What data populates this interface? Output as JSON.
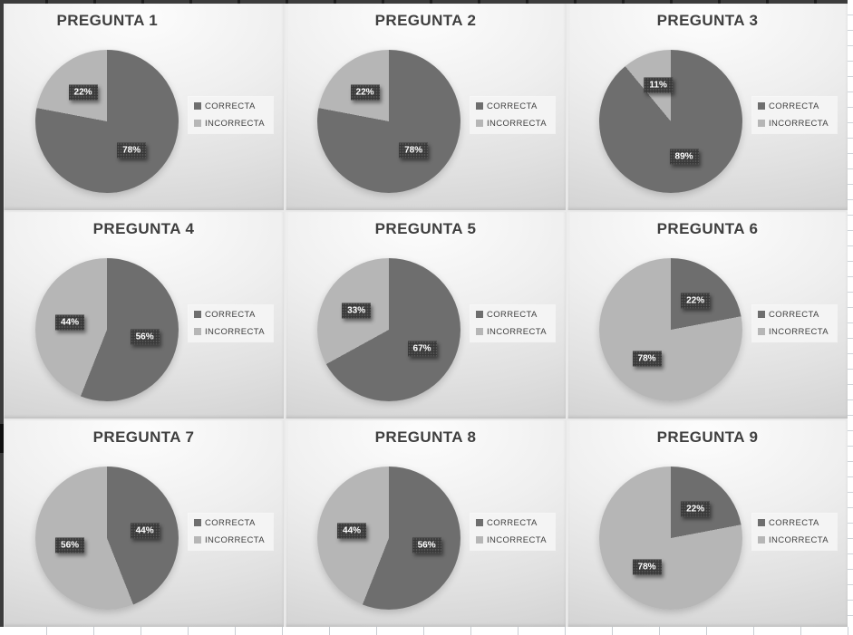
{
  "colors": {
    "correcta_slice": "#6e6e6e",
    "incorrecta_slice": "#b6b6b6",
    "label_badge": "#383838",
    "label_text": "#ffffff",
    "title_text": "#3f3f3f",
    "legend_text": "#404040"
  },
  "chart_data": [
    {
      "type": "pie",
      "title": "PREGUNTA 1",
      "labels": [
        "CORRECTA",
        "INCORRECTA"
      ],
      "values": [
        78,
        22
      ],
      "value_labels": [
        "78%",
        "22%"
      ],
      "legend_position": "right"
    },
    {
      "type": "pie",
      "title": "PREGUNTA 2",
      "labels": [
        "CORRECTA",
        "INCORRECTA"
      ],
      "values": [
        78,
        22
      ],
      "value_labels": [
        "78%",
        "22%"
      ],
      "legend_position": "right"
    },
    {
      "type": "pie",
      "title": "PREGUNTA 3",
      "labels": [
        "CORRECTA",
        "INCORRECTA"
      ],
      "values": [
        89,
        11
      ],
      "value_labels": [
        "89%",
        "11%"
      ],
      "legend_position": "right"
    },
    {
      "type": "pie",
      "title": "PREGUNTA 4",
      "labels": [
        "CORRECTA",
        "INCORRECTA"
      ],
      "values": [
        56,
        44
      ],
      "value_labels": [
        "56%",
        "44%"
      ],
      "legend_position": "right"
    },
    {
      "type": "pie",
      "title": "PREGUNTA 5",
      "labels": [
        "CORRECTA",
        "INCORRECTA"
      ],
      "values": [
        67,
        33
      ],
      "value_labels": [
        "67%",
        "33%"
      ],
      "legend_position": "right"
    },
    {
      "type": "pie",
      "title": "PREGUNTA 6",
      "labels": [
        "CORRECTA",
        "INCORRECTA"
      ],
      "values": [
        22,
        78
      ],
      "value_labels": [
        "22%",
        "78%"
      ],
      "legend_position": "right"
    },
    {
      "type": "pie",
      "title": "PREGUNTA 7",
      "labels": [
        "CORRECTA",
        "INCORRECTA"
      ],
      "values": [
        44,
        56
      ],
      "value_labels": [
        "44%",
        "56%"
      ],
      "legend_position": "right"
    },
    {
      "type": "pie",
      "title": "PREGUNTA 8",
      "labels": [
        "CORRECTA",
        "INCORRECTA"
      ],
      "values": [
        56,
        44
      ],
      "value_labels": [
        "56%",
        "44%"
      ],
      "legend_position": "right"
    },
    {
      "type": "pie",
      "title": "PREGUNTA 9",
      "labels": [
        "CORRECTA",
        "INCORRECTA"
      ],
      "values": [
        22,
        78
      ],
      "value_labels": [
        "22%",
        "78%"
      ],
      "legend_position": "right"
    }
  ]
}
